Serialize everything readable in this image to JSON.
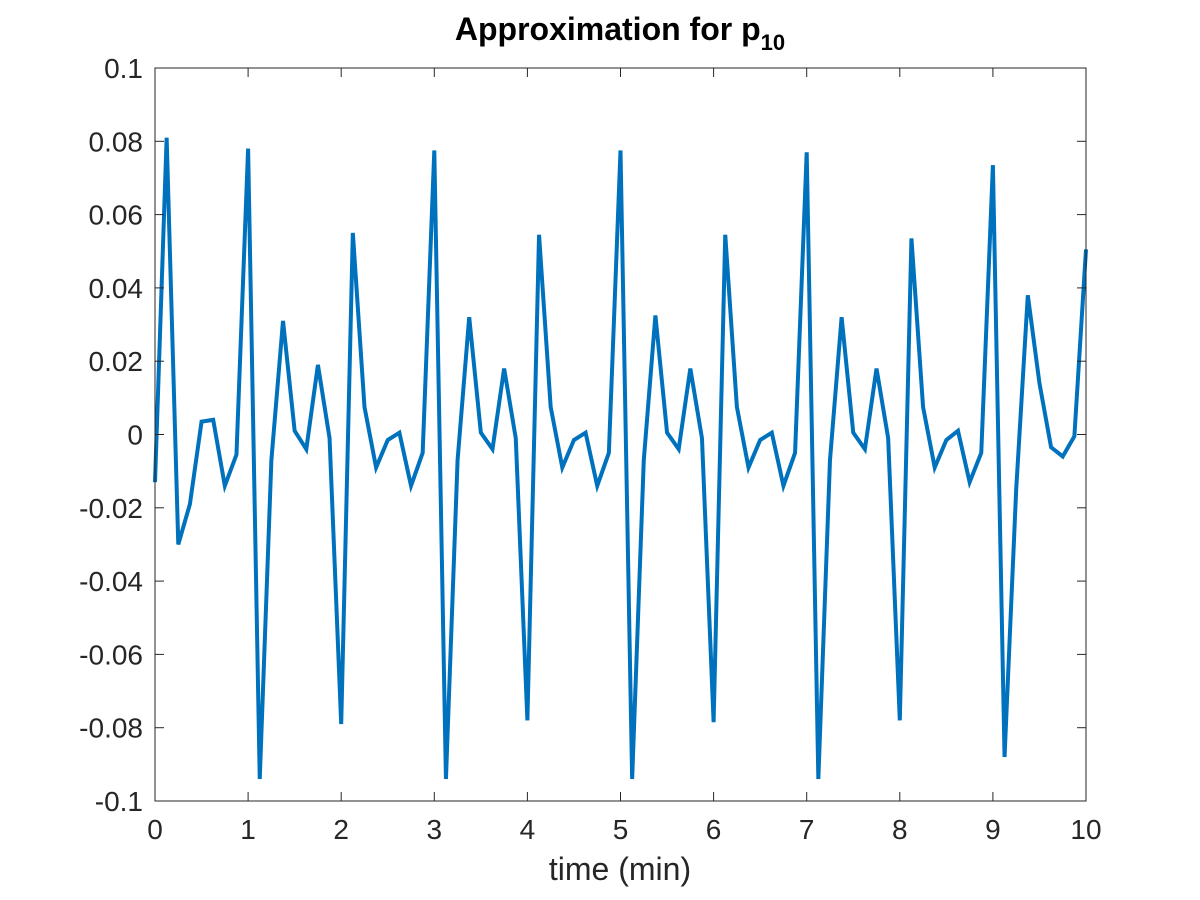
{
  "chart_data": {
    "type": "line",
    "title_text": "Approximation for p",
    "title_subscript": "10",
    "xlabel": "time (min)",
    "ylabel": "",
    "xlim": [
      0,
      10
    ],
    "ylim": [
      -0.1,
      0.1
    ],
    "grid": false,
    "x_ticks": [
      0,
      1,
      2,
      3,
      4,
      5,
      6,
      7,
      8,
      9,
      10
    ],
    "x_tick_labels": [
      "0",
      "1",
      "2",
      "3",
      "4",
      "5",
      "6",
      "7",
      "8",
      "9",
      "10"
    ],
    "y_ticks": [
      0.1,
      0.08,
      0.06,
      0.04,
      0.02,
      0,
      -0.02,
      -0.04,
      -0.06,
      -0.08,
      -0.1
    ],
    "y_tick_labels": [
      "0.1",
      "0.08",
      "0.06",
      "0.04",
      "0.02",
      "0",
      "-0.02",
      "-0.04",
      "-0.06",
      "-0.08",
      "-0.1"
    ],
    "line_color": "#0072BD",
    "series": [
      {
        "x": [
          0,
          0.125,
          0.25,
          0.375,
          0.5,
          0.625,
          0.75,
          0.875,
          1.0,
          1.125,
          1.25,
          1.375,
          1.5,
          1.625,
          1.75,
          1.875,
          2.0,
          2.125,
          2.25,
          2.375,
          2.5,
          2.625,
          2.75,
          2.875,
          3.0,
          3.125,
          3.25,
          3.375,
          3.5,
          3.625,
          3.75,
          3.875,
          4.0,
          4.125,
          4.25,
          4.375,
          4.5,
          4.625,
          4.75,
          4.875,
          5.0,
          5.125,
          5.25,
          5.375,
          5.5,
          5.625,
          5.75,
          5.875,
          6.0,
          6.125,
          6.25,
          6.375,
          6.5,
          6.625,
          6.75,
          6.875,
          7.0,
          7.125,
          7.25,
          7.375,
          7.5,
          7.625,
          7.75,
          7.875,
          8.0,
          8.125,
          8.25,
          8.375,
          8.5,
          8.625,
          8.75,
          8.875,
          9.0,
          9.125,
          9.25,
          9.375,
          9.5,
          9.625,
          9.75,
          9.875,
          10.0
        ],
        "y": [
          -0.013,
          0.081,
          -0.03,
          -0.019,
          0.0035,
          0.004,
          -0.014,
          -0.0055,
          0.078,
          -0.094,
          -0.007,
          0.031,
          0.001,
          -0.004,
          0.019,
          -0.001,
          -0.079,
          0.055,
          0.0075,
          -0.009,
          -0.0015,
          0.0005,
          -0.014,
          -0.005,
          0.0775,
          -0.094,
          -0.007,
          0.032,
          0.0005,
          -0.004,
          0.018,
          -0.001,
          -0.078,
          0.0545,
          0.0075,
          -0.009,
          -0.0015,
          0.0005,
          -0.014,
          -0.005,
          0.0775,
          -0.094,
          -0.007,
          0.0325,
          0.0005,
          -0.004,
          0.018,
          -0.001,
          -0.0785,
          0.0545,
          0.0075,
          -0.009,
          -0.0015,
          0.0005,
          -0.014,
          -0.005,
          0.077,
          -0.094,
          -0.007,
          0.032,
          0.0005,
          -0.004,
          0.018,
          -0.001,
          -0.078,
          0.0535,
          0.0075,
          -0.009,
          -0.0015,
          0.001,
          -0.013,
          -0.005,
          0.0735,
          -0.088,
          -0.015,
          0.038,
          0.014,
          -0.0035,
          -0.006,
          -0.0005,
          0.0505
        ]
      }
    ]
  }
}
